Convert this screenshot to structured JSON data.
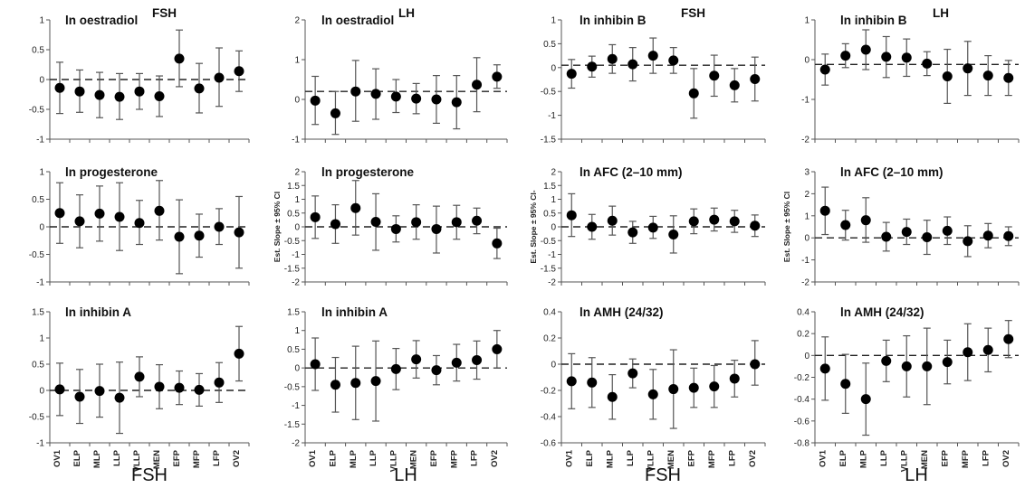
{
  "bottom_labels": [
    "FSH",
    "LH",
    "FSH",
    "LH"
  ],
  "chart_data": [
    {
      "type": "scatter",
      "title": "ln oestradiol",
      "tag": "FSH",
      "ylabel": "",
      "ylim": [
        -1,
        1
      ],
      "yticks": [
        -1,
        -0.5,
        0,
        0.5,
        1
      ],
      "ref": 0,
      "show_xticks": false,
      "categories": [
        "OV1",
        "ELP",
        "MLP",
        "LLP",
        "VLLP",
        "MEN",
        "EFP",
        "MFP",
        "LFP",
        "OV2"
      ],
      "values": [
        -0.14,
        -0.2,
        -0.26,
        -0.29,
        -0.2,
        -0.28,
        0.35,
        -0.15,
        0.03,
        0.14
      ],
      "lower": [
        -0.57,
        -0.55,
        -0.64,
        -0.67,
        -0.5,
        -0.62,
        -0.12,
        -0.56,
        -0.45,
        -0.2
      ],
      "upper": [
        0.29,
        0.16,
        0.12,
        0.1,
        0.1,
        0.06,
        0.83,
        0.27,
        0.53,
        0.48
      ]
    },
    {
      "type": "scatter",
      "title": "ln oestradiol",
      "tag": "LH",
      "ylabel": "",
      "ylim": [
        -1,
        2
      ],
      "yticks": [
        -1,
        0,
        1,
        2
      ],
      "ref": 0.2,
      "show_xticks": false,
      "categories": [
        "OV1",
        "ELP",
        "MLP",
        "LLP",
        "VLLP",
        "MEN",
        "EFP",
        "MFP",
        "LFP",
        "OV2"
      ],
      "values": [
        -0.03,
        -0.35,
        0.2,
        0.14,
        0.07,
        0.02,
        0.0,
        -0.07,
        0.37,
        0.57
      ],
      "lower": [
        -0.63,
        -0.88,
        -0.55,
        -0.5,
        -0.33,
        -0.36,
        -0.6,
        -0.74,
        -0.31,
        0.28
      ],
      "upper": [
        0.58,
        0.2,
        0.98,
        0.77,
        0.5,
        0.4,
        0.6,
        0.6,
        1.05,
        0.87
      ]
    },
    {
      "type": "scatter",
      "title": "ln inhibin B",
      "tag": "FSH",
      "ylabel": "",
      "ylim": [
        -1.5,
        1
      ],
      "yticks": [
        -1.5,
        -1,
        -0.5,
        0,
        0.5,
        1
      ],
      "ref": 0.05,
      "show_xticks": false,
      "categories": [
        "OV1",
        "ELP",
        "MLP",
        "LLP",
        "VLLP",
        "MEN",
        "EFP",
        "MFP",
        "LFP",
        "OV2"
      ],
      "values": [
        -0.13,
        0.02,
        0.18,
        0.07,
        0.25,
        0.15,
        -0.54,
        -0.17,
        -0.37,
        -0.24
      ],
      "lower": [
        -0.43,
        -0.2,
        -0.12,
        -0.28,
        -0.12,
        -0.12,
        -1.06,
        -0.6,
        -0.72,
        -0.7
      ],
      "upper": [
        0.17,
        0.24,
        0.48,
        0.42,
        0.62,
        0.42,
        -0.02,
        0.26,
        -0.02,
        0.22
      ]
    },
    {
      "type": "scatter",
      "title": "ln inhibin B",
      "tag": "LH",
      "ylabel": "",
      "ylim": [
        -2,
        1
      ],
      "yticks": [
        -2,
        -1,
        0,
        1
      ],
      "ref": -0.12,
      "show_xticks": false,
      "categories": [
        "OV1",
        "ELP",
        "MLP",
        "LLP",
        "VLLP",
        "MEN",
        "EFP",
        "MFP",
        "LFP",
        "OV2"
      ],
      "values": [
        -0.25,
        0.1,
        0.25,
        0.07,
        0.05,
        -0.1,
        -0.42,
        -0.22,
        -0.4,
        -0.46
      ],
      "lower": [
        -0.64,
        -0.2,
        -0.25,
        -0.45,
        -0.42,
        -0.4,
        -1.1,
        -0.9,
        -0.9,
        -0.9
      ],
      "upper": [
        0.14,
        0.4,
        0.75,
        0.58,
        0.52,
        0.2,
        0.26,
        0.46,
        0.1,
        -0.02
      ]
    },
    {
      "type": "scatter",
      "title": "ln progesterone",
      "ylabel": "",
      "ylim": [
        -1,
        1
      ],
      "yticks": [
        -1,
        -0.5,
        0,
        0.5,
        1
      ],
      "ref": 0,
      "show_xticks": false,
      "categories": [
        "OV1",
        "ELP",
        "MLP",
        "LLP",
        "VLLP",
        "MEN",
        "EFP",
        "MFP",
        "LFP",
        "OV2"
      ],
      "values": [
        0.25,
        0.1,
        0.24,
        0.18,
        0.07,
        0.29,
        -0.18,
        -0.16,
        0.0,
        -0.1
      ],
      "lower": [
        -0.3,
        -0.38,
        -0.26,
        -0.43,
        -0.32,
        -0.24,
        -0.85,
        -0.55,
        -0.32,
        -0.75
      ],
      "upper": [
        0.8,
        0.58,
        0.74,
        0.8,
        0.48,
        0.84,
        0.49,
        0.23,
        0.33,
        0.55
      ]
    },
    {
      "type": "scatter",
      "title": "ln progesterone",
      "ylabel": "Est. Slope ± 95% CI",
      "ylim": [
        -2,
        2
      ],
      "yticks": [
        -2,
        -1.5,
        -1,
        -0.5,
        0,
        0.5,
        1,
        1.5,
        2
      ],
      "ref": 0,
      "show_xticks": false,
      "categories": [
        "OV1",
        "ELP",
        "MLP",
        "LLP",
        "VLLP",
        "MEN",
        "EFP",
        "MFP",
        "LFP",
        "OV2"
      ],
      "values": [
        0.35,
        0.1,
        0.68,
        0.18,
        -0.08,
        0.17,
        -0.08,
        0.17,
        0.22,
        -0.6
      ],
      "lower": [
        -0.42,
        -0.6,
        -0.3,
        -0.85,
        -0.55,
        -0.45,
        -0.95,
        -0.45,
        -0.25,
        -1.15
      ],
      "upper": [
        1.12,
        0.8,
        1.68,
        1.2,
        0.4,
        0.8,
        0.75,
        0.78,
        0.68,
        -0.05
      ]
    },
    {
      "type": "scatter",
      "title": "ln AFC (2–10 mm)",
      "ylabel": "Est. Slope ± 95% CI-",
      "ylim": [
        -2,
        2
      ],
      "yticks": [
        -2,
        -1.5,
        -1,
        -0.5,
        0,
        0.5,
        1,
        1.5,
        2
      ],
      "ref": 0,
      "show_xticks": false,
      "categories": [
        "OV1",
        "ELP",
        "MLP",
        "LLP",
        "VLLP",
        "MEN",
        "EFP",
        "MFP",
        "LFP",
        "OV2"
      ],
      "values": [
        0.42,
        0.0,
        0.22,
        -0.2,
        -0.03,
        -0.28,
        0.2,
        0.26,
        0.2,
        0.04
      ],
      "lower": [
        -0.35,
        -0.45,
        -0.3,
        -0.6,
        -0.42,
        -0.95,
        -0.25,
        -0.15,
        -0.2,
        -0.35
      ],
      "upper": [
        1.2,
        0.45,
        0.75,
        0.2,
        0.38,
        0.4,
        0.65,
        0.68,
        0.6,
        0.43
      ]
    },
    {
      "type": "scatter",
      "title": "ln AFC (2–10 mm)",
      "ylabel": "Est. Slope ± 95% CI",
      "ylim": [
        -2,
        3
      ],
      "yticks": [
        -2,
        -1,
        0,
        1,
        2,
        3
      ],
      "ref": 0,
      "show_xticks": false,
      "categories": [
        "OV1",
        "ELP",
        "MLP",
        "LLP",
        "VLLP",
        "MEN",
        "EFP",
        "MFP",
        "LFP",
        "OV2"
      ],
      "values": [
        1.23,
        0.58,
        0.8,
        0.05,
        0.27,
        0.03,
        0.32,
        -0.15,
        0.1,
        0.08
      ],
      "lower": [
        0.15,
        -0.1,
        -0.2,
        -0.6,
        -0.3,
        -0.75,
        -0.3,
        -0.85,
        -0.45,
        -0.35
      ],
      "upper": [
        2.3,
        1.25,
        1.82,
        0.7,
        0.85,
        0.8,
        0.95,
        0.55,
        0.65,
        0.5
      ]
    },
    {
      "type": "scatter",
      "title": "ln inhibin A",
      "ylabel": "",
      "ylim": [
        -1,
        1.5
      ],
      "yticks": [
        -1,
        -0.5,
        0,
        0.5,
        1,
        1.5
      ],
      "ref": 0,
      "show_xticks": true,
      "categories": [
        "OV1",
        "ELP",
        "MLP",
        "LLP",
        "VLLP",
        "MEN",
        "EFP",
        "MFP",
        "LFP",
        "OV2"
      ],
      "values": [
        0.02,
        -0.12,
        -0.01,
        -0.14,
        0.26,
        0.07,
        0.05,
        0.01,
        0.15,
        0.7
      ],
      "lower": [
        -0.48,
        -0.63,
        -0.51,
        -0.82,
        -0.12,
        -0.35,
        -0.27,
        -0.3,
        -0.23,
        0.18
      ],
      "upper": [
        0.52,
        0.4,
        0.5,
        0.54,
        0.64,
        0.49,
        0.37,
        0.32,
        0.53,
        1.22
      ]
    },
    {
      "type": "scatter",
      "title": "ln inhibin A",
      "ylabel": "",
      "ylim": [
        -2,
        1.5
      ],
      "yticks": [
        -2,
        -1.5,
        -1,
        -0.5,
        0,
        0.5,
        1,
        1.5
      ],
      "ref": 0,
      "show_xticks": true,
      "categories": [
        "OV1",
        "ELP",
        "MLP",
        "LLP",
        "VLLP",
        "MEN",
        "EFP",
        "MFP",
        "LFP",
        "OV2"
      ],
      "values": [
        0.1,
        -0.45,
        -0.4,
        -0.35,
        -0.03,
        0.23,
        -0.06,
        0.14,
        0.21,
        0.5
      ],
      "lower": [
        -0.6,
        -1.18,
        -1.38,
        -1.42,
        -0.58,
        -0.27,
        -0.45,
        -0.35,
        -0.3,
        0.0
      ],
      "upper": [
        0.8,
        0.28,
        0.58,
        0.72,
        0.52,
        0.73,
        0.33,
        0.63,
        0.72,
        1.0
      ]
    },
    {
      "type": "scatter",
      "title": "ln AMH (24/32)",
      "ylabel": "",
      "ylim": [
        -0.6,
        0.4
      ],
      "yticks": [
        -0.6,
        -0.4,
        -0.2,
        0,
        0.2,
        0.4
      ],
      "ref": 0,
      "show_xticks": true,
      "categories": [
        "OV1",
        "ELP",
        "MLP",
        "LLP",
        "VLLP",
        "MEN",
        "EFP",
        "MFP",
        "LFP",
        "OV2"
      ],
      "values": [
        -0.13,
        -0.14,
        -0.25,
        -0.07,
        -0.23,
        -0.19,
        -0.18,
        -0.17,
        -0.11,
        0.0
      ],
      "lower": [
        -0.34,
        -0.33,
        -0.42,
        -0.18,
        -0.42,
        -0.49,
        -0.33,
        -0.33,
        -0.25,
        -0.16
      ],
      "upper": [
        0.08,
        0.05,
        -0.08,
        0.04,
        -0.04,
        0.11,
        -0.03,
        -0.01,
        0.03,
        0.18
      ]
    },
    {
      "type": "scatter",
      "title": "ln AMH (24/32)",
      "ylabel": "",
      "ylim": [
        -0.8,
        0.4
      ],
      "yticks": [
        -0.8,
        -0.6,
        -0.4,
        -0.2,
        0,
        0.2,
        0.4
      ],
      "ref": 0,
      "show_xticks": true,
      "categories": [
        "OV1",
        "ELP",
        "MLP",
        "LLP",
        "VLLP",
        "MEN",
        "EFP",
        "MFP",
        "LFP",
        "OV2"
      ],
      "values": [
        -0.12,
        -0.26,
        -0.4,
        -0.05,
        -0.1,
        -0.1,
        -0.06,
        0.03,
        0.05,
        0.15
      ],
      "lower": [
        -0.41,
        -0.53,
        -0.73,
        -0.24,
        -0.38,
        -0.45,
        -0.26,
        -0.23,
        -0.15,
        -0.02
      ],
      "upper": [
        0.17,
        0.01,
        -0.07,
        0.14,
        0.18,
        0.25,
        0.14,
        0.29,
        0.25,
        0.32
      ]
    }
  ]
}
